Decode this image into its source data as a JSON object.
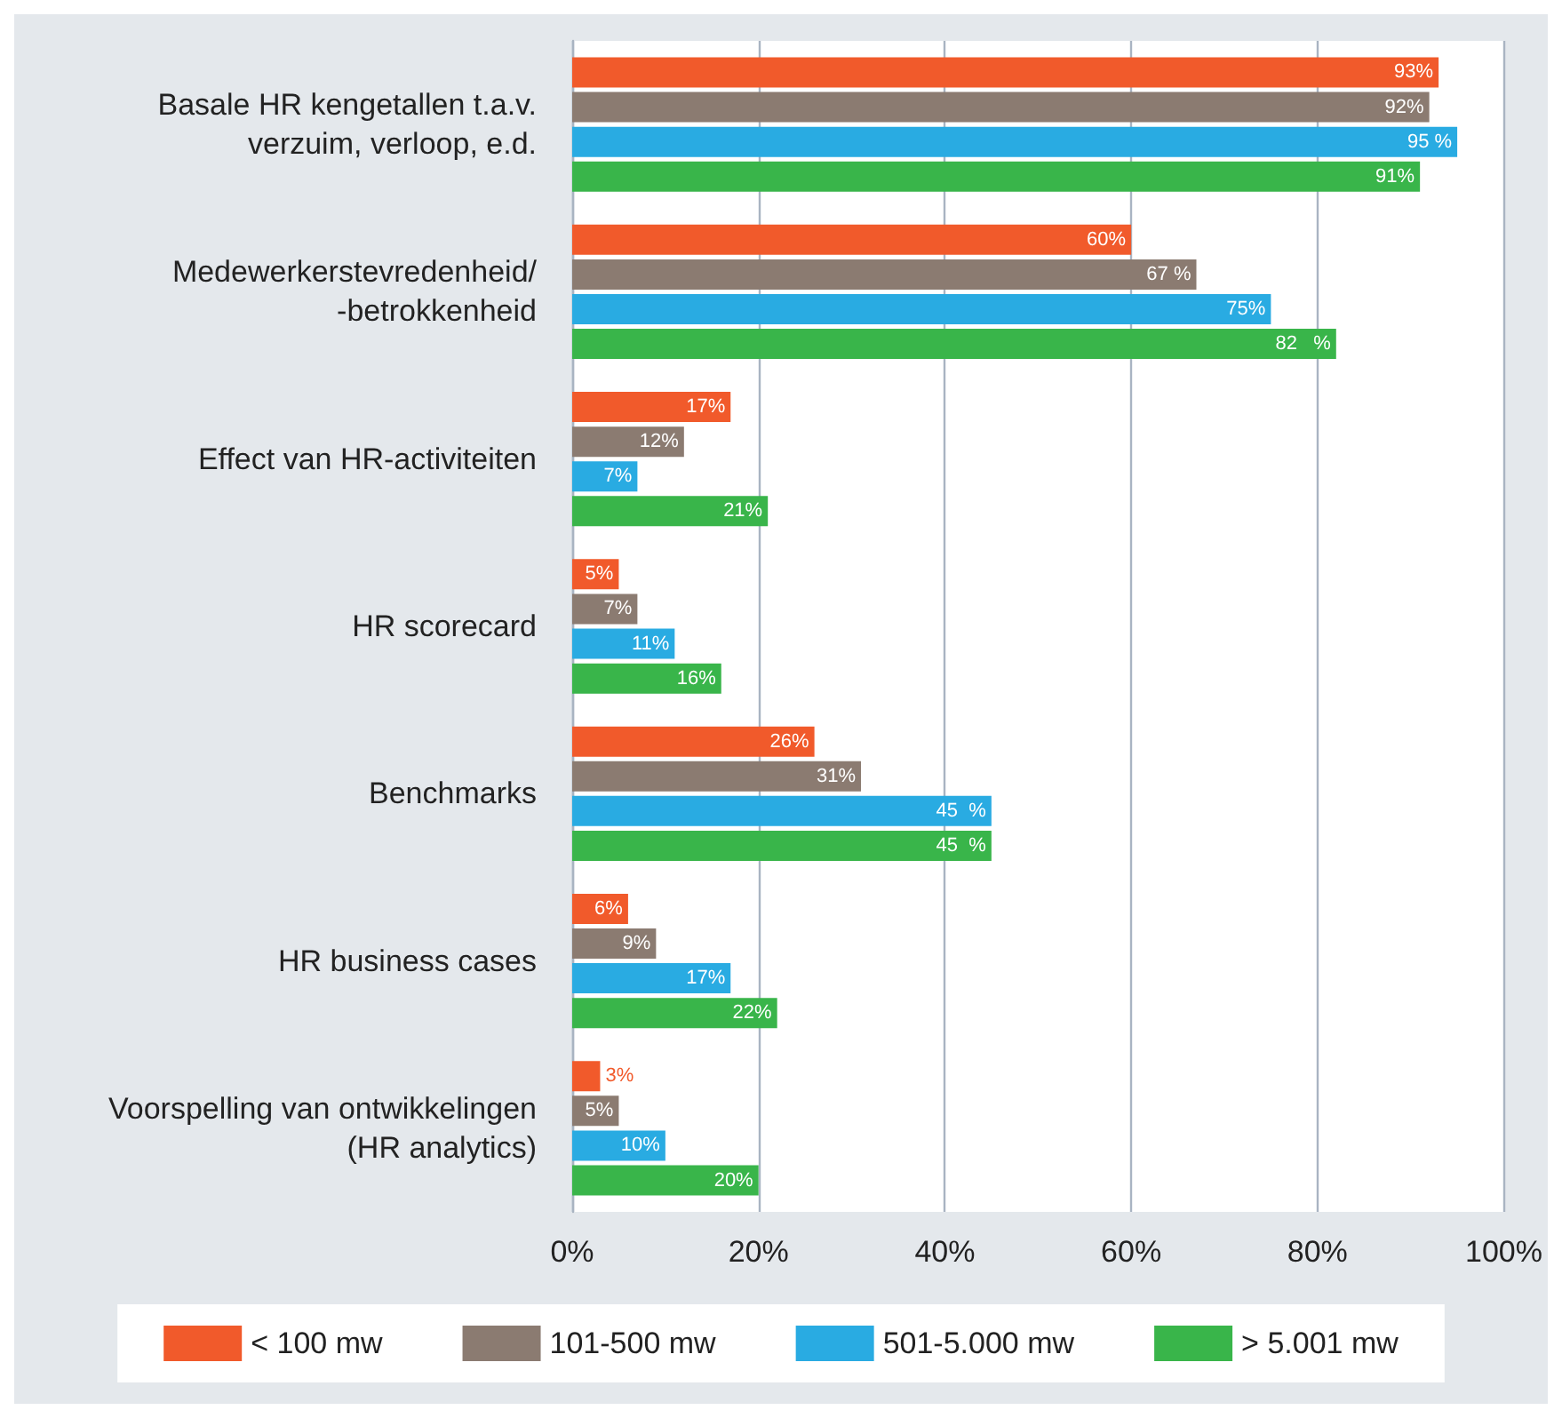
{
  "chart_data": {
    "type": "bar",
    "orientation": "horizontal",
    "categories": [
      "Basale HR kengetallen t.a.v.\nverzuim, verloop, e.d.",
      "Medewerkerstevredenheid/\n-betrokkenheid",
      "Effect van HR-activiteiten",
      "HR scorecard",
      "Benchmarks",
      "HR business cases",
      "Voorspelling van ontwikkelingen\n(HR analytics)"
    ],
    "series": [
      {
        "name": "< 100 mw",
        "color": "#f15a2b",
        "values": [
          93,
          60,
          17,
          5,
          26,
          6,
          3
        ],
        "value_labels": [
          "93%",
          "60%",
          "17%",
          "5%",
          "26%",
          "6%",
          "3%"
        ]
      },
      {
        "name": "101-500 mw",
        "color": "#8b7b71",
        "values": [
          92,
          67,
          12,
          7,
          31,
          9,
          5
        ],
        "value_labels": [
          "92%",
          "67 %",
          "12%",
          "7%",
          "31%",
          "9%",
          "5%"
        ]
      },
      {
        "name": "501-5.000 mw",
        "color": "#29abe2",
        "values": [
          95,
          75,
          7,
          11,
          45,
          17,
          10
        ],
        "value_labels": [
          "95 %",
          "75%",
          "7%",
          "11%",
          "45  %",
          "17%",
          "10%"
        ]
      },
      {
        "name": "> 5.001 mw",
        "color": "#39b54a",
        "values": [
          91,
          82,
          21,
          16,
          45,
          22,
          20
        ],
        "value_labels": [
          "91%",
          "82   %",
          "21%",
          "16%",
          "45  %",
          "22%",
          "20%"
        ]
      }
    ],
    "xlim": [
      0,
      100
    ],
    "xticks": [
      {
        "value": 0,
        "label": "0%"
      },
      {
        "value": 20,
        "label": "20%"
      },
      {
        "value": 40,
        "label": "40%"
      },
      {
        "value": 60,
        "label": "60%"
      },
      {
        "value": 80,
        "label": "80%"
      },
      {
        "value": 100,
        "label": "100%"
      }
    ],
    "grid": "x",
    "legend": "bottom"
  }
}
